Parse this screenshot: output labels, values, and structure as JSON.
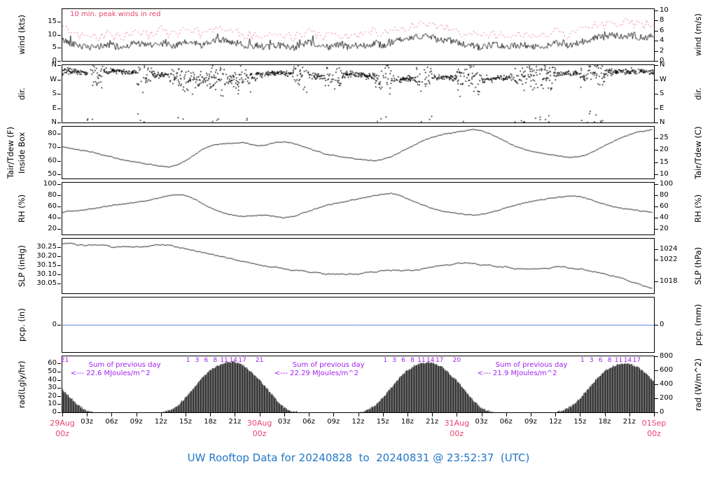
{
  "title": "UW Rooftop Data for 20240828  to  20240831 @ 23:52:37  (UTC)",
  "colors": {
    "black": "#000000",
    "red": "#e8436e",
    "purple": "#a020f0",
    "blue": "#2176c7",
    "pcp_blue": "#5b7fe8"
  },
  "x_axis": {
    "hours_total": 72,
    "day_labels": [
      {
        "hour": 0,
        "date": "29Aug",
        "time": "00z"
      },
      {
        "hour": 24,
        "date": "30Aug",
        "time": "00z"
      },
      {
        "hour": 48,
        "date": "31Aug",
        "time": "00z"
      },
      {
        "hour": 72,
        "date": "01Sep",
        "time": "00z"
      }
    ],
    "minor_labels": [
      {
        "hour": 3,
        "text": "03z"
      },
      {
        "hour": 6,
        "text": "06z"
      },
      {
        "hour": 9,
        "text": "09z"
      },
      {
        "hour": 12,
        "text": "12z"
      },
      {
        "hour": 15,
        "text": "15z"
      },
      {
        "hour": 18,
        "text": "18z"
      },
      {
        "hour": 21,
        "text": "21z"
      },
      {
        "hour": 27,
        "text": "03z"
      },
      {
        "hour": 30,
        "text": "06z"
      },
      {
        "hour": 33,
        "text": "09z"
      },
      {
        "hour": 36,
        "text": "12z"
      },
      {
        "hour": 39,
        "text": "15z"
      },
      {
        "hour": 42,
        "text": "18z"
      },
      {
        "hour": 45,
        "text": "21z"
      },
      {
        "hour": 51,
        "text": "03z"
      },
      {
        "hour": 54,
        "text": "06z"
      },
      {
        "hour": 57,
        "text": "09z"
      },
      {
        "hour": 60,
        "text": "12z"
      },
      {
        "hour": 63,
        "text": "15z"
      },
      {
        "hour": 66,
        "text": "18z"
      },
      {
        "hour": 69,
        "text": "21z"
      }
    ]
  },
  "chart_data": [
    {
      "id": "wind",
      "type": "line",
      "label_left": "wind (kts)",
      "label_right": "wind (m/s)",
      "ylim": [
        0,
        19.9
      ],
      "annotation": "10 min. peak winds in red",
      "yticks_left": [
        {
          "v": 0,
          "t": "0"
        },
        {
          "v": 5,
          "t": "5"
        },
        {
          "v": 10,
          "t": "10"
        },
        {
          "v": 15,
          "t": "15"
        }
      ],
      "yticks_right": [
        {
          "v": 0,
          "t": "0"
        },
        {
          "v": 3.888,
          "t": "2"
        },
        {
          "v": 7.775,
          "t": "4"
        },
        {
          "v": 11.663,
          "t": "6"
        },
        {
          "v": 15.55,
          "t": "8"
        },
        {
          "v": 19.438,
          "t": "10"
        }
      ],
      "series": [
        {
          "name": "10 min avg wind (kts)",
          "color": "black",
          "hourly": [
            8,
            7,
            6,
            5,
            5,
            6,
            6,
            5,
            6,
            7,
            6,
            6,
            7,
            6,
            6,
            7,
            7,
            6,
            7,
            8,
            8,
            7,
            6,
            6,
            6,
            5,
            6,
            6,
            5,
            6,
            7,
            6,
            5,
            6,
            6,
            5,
            6,
            6,
            7,
            6,
            7,
            8,
            8,
            9,
            10,
            9,
            8,
            8,
            7,
            6,
            6,
            5,
            6,
            6,
            5,
            6,
            6,
            6,
            5,
            6,
            7,
            6,
            6,
            7,
            8,
            9,
            9,
            10,
            9,
            10,
            9,
            9,
            10
          ]
        },
        {
          "name": "10 min peak wind (kts)",
          "color": "red",
          "style": "dashed",
          "hourly": [
            13,
            12,
            10,
            9,
            9,
            10,
            10,
            9,
            10,
            12,
            10,
            10,
            12,
            10,
            10,
            12,
            12,
            10,
            12,
            13,
            13,
            12,
            10,
            10,
            10,
            9,
            10,
            10,
            9,
            10,
            12,
            10,
            9,
            10,
            10,
            9,
            10,
            10,
            12,
            10,
            12,
            13,
            13,
            14,
            15,
            14,
            13,
            13,
            12,
            10,
            10,
            9,
            10,
            10,
            9,
            10,
            10,
            10,
            9,
            10,
            12,
            10,
            10,
            12,
            13,
            14,
            14,
            15,
            14,
            15,
            14,
            14,
            15
          ]
        }
      ]
    },
    {
      "id": "dir",
      "type": "scatter",
      "label_left": "dir.",
      "label_right": "dir.",
      "ylim": [
        0,
        360
      ],
      "invert": true,
      "yticks_left": [
        {
          "v": 0,
          "t": "N"
        },
        {
          "v": 90,
          "t": "W"
        },
        {
          "v": 180,
          "t": "S"
        },
        {
          "v": 270,
          "t": "E"
        },
        {
          "v": 360,
          "t": "N"
        }
      ],
      "yticks_right": [
        {
          "v": 0,
          "t": "N"
        },
        {
          "v": 90,
          "t": "W"
        },
        {
          "v": 180,
          "t": "S"
        },
        {
          "v": 270,
          "t": "E"
        },
        {
          "v": 360,
          "t": "N"
        }
      ],
      "mean_hourly": [
        40,
        42,
        45,
        50,
        45,
        40,
        38,
        42,
        48,
        55,
        60,
        62,
        58,
        70,
        80,
        90,
        95,
        90,
        85,
        80,
        85,
        90,
        80,
        70,
        55,
        50,
        48,
        52,
        60,
        65,
        70,
        72,
        68,
        64,
        60,
        58,
        62,
        70,
        75,
        80,
        85,
        90,
        88,
        84,
        80,
        78,
        76,
        80,
        82,
        85,
        88,
        90,
        86,
        82,
        78,
        74,
        70,
        66,
        62,
        58,
        55,
        52,
        50,
        48,
        45,
        44,
        43,
        42,
        40,
        40,
        42,
        44,
        45
      ],
      "spread_hourly": [
        30,
        25,
        25,
        140,
        140,
        30,
        25,
        25,
        30,
        140,
        140,
        30,
        25,
        60,
        140,
        140,
        80,
        60,
        140,
        140,
        60,
        140,
        140,
        40,
        30,
        25,
        25,
        30,
        140,
        140,
        30,
        25,
        140,
        140,
        30,
        25,
        25,
        30,
        140,
        140,
        30,
        25,
        30,
        140,
        140,
        30,
        25,
        30,
        140,
        140,
        140,
        40,
        30,
        25,
        30,
        140,
        140,
        140,
        140,
        140,
        30,
        25,
        30,
        140,
        140,
        140,
        30,
        25,
        25,
        30,
        25,
        25,
        30
      ]
    },
    {
      "id": "temp",
      "type": "line",
      "label_left": "Tair/Tdew (F)",
      "label_left2": "Inside Box",
      "label_right": "Tair/Tdew (C)",
      "ylim": [
        47,
        85
      ],
      "noise": 0.3,
      "yticks_left": [
        {
          "v": 50,
          "t": "50"
        },
        {
          "v": 60,
          "t": "60"
        },
        {
          "v": 70,
          "t": "70"
        },
        {
          "v": 80,
          "t": "80"
        }
      ],
      "yticks_right": [
        {
          "v": 50,
          "t": "10"
        },
        {
          "v": 59,
          "t": "15"
        },
        {
          "v": 68,
          "t": "20"
        },
        {
          "v": 77,
          "t": "25"
        }
      ],
      "series": [
        {
          "name": "Tair (F)",
          "color": "black",
          "hourly": [
            70,
            69,
            68,
            67,
            66,
            64,
            63,
            61,
            60,
            59,
            58,
            57,
            56,
            55.5,
            57,
            60,
            64,
            68,
            71,
            72,
            72.5,
            73,
            73.5,
            72,
            71,
            72,
            73.5,
            74,
            73,
            71,
            69,
            67,
            65,
            64,
            63,
            62,
            61,
            60.5,
            60,
            61,
            63,
            66,
            69,
            72,
            75,
            77,
            79,
            80,
            81,
            82,
            83,
            82,
            80,
            77,
            74,
            71,
            69,
            67,
            66,
            65,
            64,
            63,
            62.5,
            63,
            65,
            68,
            71,
            74,
            77,
            79,
            81,
            82,
            83
          ]
        }
      ]
    },
    {
      "id": "rh",
      "type": "line",
      "label_left": "RH (%)",
      "label_right": "RH (%)",
      "ylim": [
        10,
        103
      ],
      "noise": 0.8,
      "yticks_left": [
        {
          "v": 20,
          "t": "20"
        },
        {
          "v": 40,
          "t": "40"
        },
        {
          "v": 60,
          "t": "60"
        },
        {
          "v": 80,
          "t": "80"
        },
        {
          "v": 100,
          "t": "100"
        }
      ],
      "yticks_right": [
        {
          "v": 20,
          "t": "20"
        },
        {
          "v": 40,
          "t": "40"
        },
        {
          "v": 60,
          "t": "60"
        },
        {
          "v": 80,
          "t": "80"
        },
        {
          "v": 100,
          "t": "100"
        }
      ],
      "series": [
        {
          "name": "relative humidity (%)",
          "color": "black",
          "hourly": [
            50,
            52,
            53,
            55,
            57,
            60,
            62,
            64,
            66,
            68,
            70,
            73,
            76,
            80,
            82,
            80,
            74,
            66,
            58,
            52,
            47,
            44,
            42,
            43,
            45,
            44,
            42,
            40,
            42,
            47,
            52,
            57,
            62,
            65,
            68,
            71,
            74,
            77,
            80,
            82,
            84,
            80,
            74,
            68,
            62,
            57,
            53,
            50,
            48,
            46,
            45,
            46,
            49,
            53,
            58,
            62,
            66,
            69,
            72,
            74,
            76,
            78,
            79,
            78,
            74,
            69,
            64,
            60,
            57,
            55,
            53,
            51,
            50
          ]
        }
      ]
    },
    {
      "id": "slp",
      "type": "line",
      "label_left": "SLP (inHg)",
      "label_right": "SLP (hPa)",
      "ylim": [
        29.995,
        30.295
      ],
      "noise": 0.003,
      "yticks_left": [
        {
          "v": 30.05,
          "t": "30.05"
        },
        {
          "v": 30.1,
          "t": "30.10"
        },
        {
          "v": 30.15,
          "t": "30.15"
        },
        {
          "v": 30.2,
          "t": "30.20"
        },
        {
          "v": 30.25,
          "t": "30.25"
        }
      ],
      "yticks_right": [
        {
          "v": 30.061,
          "t": "1018"
        },
        {
          "v": 30.179,
          "t": "1022"
        },
        {
          "v": 30.238,
          "t": "1024"
        }
      ],
      "series": [
        {
          "name": "sea level pressure (inHg)",
          "color": "black",
          "hourly": [
            30.27,
            30.27,
            30.26,
            30.26,
            30.26,
            30.26,
            30.25,
            30.25,
            30.25,
            30.25,
            30.25,
            30.26,
            30.26,
            30.26,
            30.25,
            30.24,
            30.23,
            30.22,
            30.21,
            30.2,
            30.19,
            30.18,
            30.17,
            30.16,
            30.15,
            30.14,
            30.14,
            30.13,
            30.12,
            30.12,
            30.11,
            30.11,
            30.1,
            30.1,
            30.1,
            30.1,
            30.1,
            30.11,
            30.11,
            30.12,
            30.12,
            30.12,
            30.12,
            30.12,
            30.13,
            30.14,
            30.15,
            30.15,
            30.16,
            30.16,
            30.16,
            30.15,
            30.15,
            30.14,
            30.14,
            30.13,
            30.13,
            30.13,
            30.13,
            30.13,
            30.14,
            30.14,
            30.13,
            30.13,
            30.12,
            30.11,
            30.1,
            30.09,
            30.08,
            30.06,
            30.05,
            30.03,
            30.02
          ]
        }
      ]
    },
    {
      "id": "pcp",
      "type": "line",
      "label_left": "pcp. (in)",
      "label_right": "pcp. (mm)",
      "ylim": [
        -1,
        1
      ],
      "yticks_left": [
        {
          "v": 0,
          "t": "0"
        }
      ],
      "yticks_right": [
        {
          "v": 0,
          "t": "0"
        }
      ],
      "series": [
        {
          "name": "precipitation (in)",
          "color": "blue",
          "hourly": [
            0
          ]
        }
      ]
    },
    {
      "id": "rad",
      "type": "area",
      "label_left": "rad(Lgly/hr)",
      "label_right": "rad (W/m^2)",
      "ylim": [
        0,
        69
      ],
      "yticks_left": [
        {
          "v": 0,
          "t": "0"
        },
        {
          "v": 10,
          "t": "10"
        },
        {
          "v": 20,
          "t": "20"
        },
        {
          "v": 30,
          "t": "30"
        },
        {
          "v": 40,
          "t": "40"
        },
        {
          "v": 50,
          "t": "50"
        },
        {
          "v": 60,
          "t": "60"
        }
      ],
      "yticks_right": [
        {
          "v": 0,
          "t": "0"
        },
        {
          "v": 17.2,
          "t": "200"
        },
        {
          "v": 34.4,
          "t": "400"
        },
        {
          "v": 51.6,
          "t": "600"
        },
        {
          "v": 68.8,
          "t": "800"
        }
      ],
      "series": [
        {
          "name": "solar radiation (Langley/hr)",
          "color": "black",
          "hourly": [
            28,
            18,
            8,
            2,
            0,
            0,
            0,
            0,
            0,
            0,
            0,
            0,
            0,
            2,
            8,
            18,
            30,
            42,
            52,
            58,
            62,
            62,
            58,
            50,
            40,
            28,
            16,
            6,
            1,
            0,
            0,
            0,
            0,
            0,
            0,
            0,
            0,
            2,
            8,
            18,
            30,
            42,
            52,
            58,
            61,
            61,
            57,
            49,
            39,
            27,
            15,
            5,
            1,
            0,
            0,
            0,
            0,
            0,
            0,
            0,
            0,
            2,
            8,
            17,
            29,
            41,
            51,
            57,
            60,
            60,
            56,
            48,
            38
          ]
        }
      ],
      "cumulative_labels": [
        {
          "hour": 0.3,
          "text": "21"
        },
        {
          "hour": 15.3,
          "text": "1"
        },
        {
          "hour": 16.4,
          "text": "3"
        },
        {
          "hour": 17.5,
          "text": "6"
        },
        {
          "hour": 18.6,
          "text": "8"
        },
        {
          "hour": 19.7,
          "text": "11"
        },
        {
          "hour": 20.8,
          "text": "14"
        },
        {
          "hour": 21.9,
          "text": "17"
        },
        {
          "hour": 24.0,
          "text": "21"
        },
        {
          "hour": 39.3,
          "text": "1"
        },
        {
          "hour": 40.4,
          "text": "3"
        },
        {
          "hour": 41.5,
          "text": "6"
        },
        {
          "hour": 42.6,
          "text": "8"
        },
        {
          "hour": 43.7,
          "text": "11"
        },
        {
          "hour": 44.8,
          "text": "14"
        },
        {
          "hour": 45.9,
          "text": "17"
        },
        {
          "hour": 48.0,
          "text": "20"
        },
        {
          "hour": 63.3,
          "text": "1"
        },
        {
          "hour": 64.4,
          "text": "3"
        },
        {
          "hour": 65.5,
          "text": "6"
        },
        {
          "hour": 66.6,
          "text": "8"
        },
        {
          "hour": 67.7,
          "text": "11"
        },
        {
          "hour": 68.8,
          "text": "14"
        },
        {
          "hour": 69.9,
          "text": "17"
        }
      ],
      "sum_annotations": [
        {
          "hour": 1.0,
          "line1": "Sum of previous day",
          "line2": "<--- 22.6 MJoules/m^2"
        },
        {
          "hour": 25.8,
          "line1": "Sum of previous day",
          "line2": "<--- 22.29 MJoules/m^2"
        },
        {
          "hour": 50.5,
          "line1": "Sum of previous day",
          "line2": "<--- 21.9 MJoules/m^2"
        }
      ]
    }
  ]
}
